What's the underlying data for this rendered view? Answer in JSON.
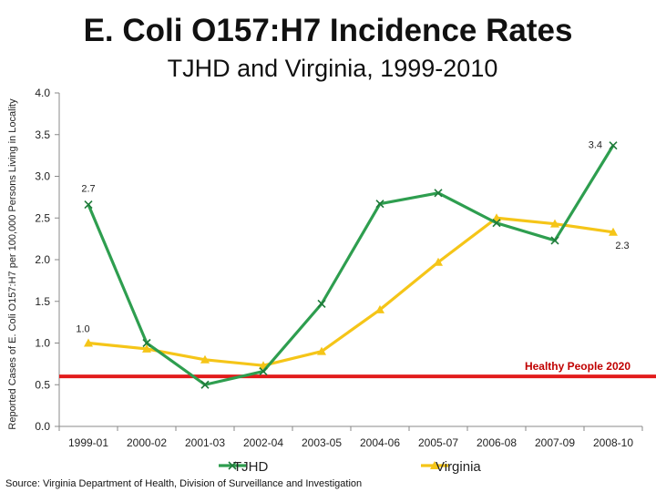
{
  "chart_data": {
    "type": "line",
    "title": "E. Coli O157:H7 Incidence Rates",
    "subtitle": "TJHD and Virginia, 1999-2010",
    "ylabel": "Reported Cases of E. Coli O157:H7 per 100,000 Persons Living in Locality",
    "xlabel": "",
    "ylim": [
      0,
      4
    ],
    "yticks": [
      "0.0",
      "0.5",
      "1.0",
      "1.5",
      "2.0",
      "2.5",
      "3.0",
      "3.5",
      "4.0"
    ],
    "categories": [
      "1999-01",
      "2000-02",
      "2001-03",
      "2002-04",
      "2003-05",
      "2004-06",
      "2005-07",
      "2006-08",
      "2007-09",
      "2008-10"
    ],
    "series": [
      {
        "name": "TJHD",
        "color": "#2e9e4f",
        "marker": "x",
        "values": [
          2.66,
          1.0,
          0.5,
          0.66,
          1.47,
          2.67,
          2.8,
          2.44,
          2.23,
          3.37
        ]
      },
      {
        "name": "Virginia",
        "color": "#f5c518",
        "marker": "triangle",
        "values": [
          1.0,
          0.93,
          0.8,
          0.73,
          0.9,
          1.4,
          1.97,
          2.5,
          2.43,
          2.33
        ]
      }
    ],
    "data_labels": [
      {
        "series": 0,
        "index": 0,
        "text": "2.7"
      },
      {
        "series": 0,
        "index": 9,
        "text": "3.4"
      },
      {
        "series": 1,
        "index": 0,
        "text": "1.0"
      },
      {
        "series": 1,
        "index": 9,
        "text": "2.3"
      }
    ],
    "reference_line": {
      "label": "Healthy People 2020",
      "value": 0.6,
      "color": "#e21b1b"
    },
    "grid": false,
    "legend": "bottom"
  },
  "source": "Source: Virginia Department of Health, Division of Surveillance and Investigation"
}
